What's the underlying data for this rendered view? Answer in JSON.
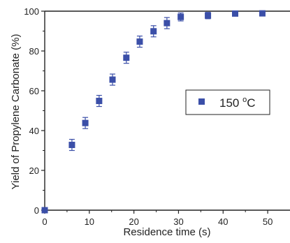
{
  "chart_data": {
    "type": "scatter",
    "xlabel": "Residence time (s)",
    "ylabel": "Yield of Propylene Carbonate (%)",
    "xlim": [
      0,
      55
    ],
    "ylim": [
      0,
      100
    ],
    "x_ticks": [
      "0",
      "10",
      "20",
      "30",
      "40",
      "50"
    ],
    "y_ticks": [
      "0",
      "20",
      "40",
      "60",
      "80",
      "100"
    ],
    "grid": false,
    "legend_position": "right-middle",
    "marker_color": "#3b4fa8",
    "series": [
      {
        "name": "150 °C",
        "legend_main": "150 ",
        "legend_sup": "o",
        "legend_unit": "C",
        "marker": "square",
        "points": [
          {
            "x": 0,
            "y": 0,
            "err": 0
          },
          {
            "x": 6.1,
            "y": 32.8,
            "err": 2.8
          },
          {
            "x": 9.1,
            "y": 43.8,
            "err": 2.8
          },
          {
            "x": 12.2,
            "y": 54.9,
            "err": 2.8
          },
          {
            "x": 15.2,
            "y": 65.6,
            "err": 2.8
          },
          {
            "x": 18.3,
            "y": 76.6,
            "err": 2.8
          },
          {
            "x": 21.3,
            "y": 84.7,
            "err": 2.8
          },
          {
            "x": 24.4,
            "y": 89.9,
            "err": 2.8
          },
          {
            "x": 27.4,
            "y": 94.0,
            "err": 2.8
          },
          {
            "x": 30.5,
            "y": 97.1,
            "err": 2.0
          },
          {
            "x": 36.6,
            "y": 97.8,
            "err": 1.6
          },
          {
            "x": 42.7,
            "y": 98.8,
            "err": 1.0
          },
          {
            "x": 48.8,
            "y": 98.9,
            "err": 0.8
          }
        ]
      }
    ]
  }
}
